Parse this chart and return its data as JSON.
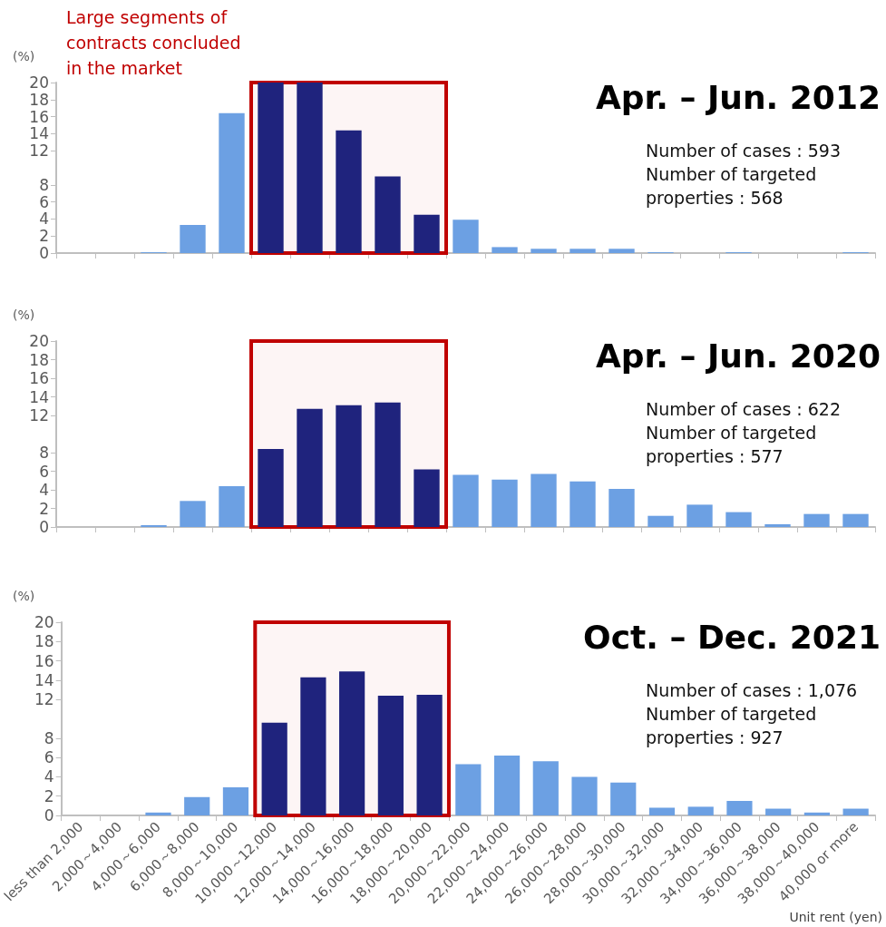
{
  "chart_data": [
    {
      "type": "bar",
      "title": "Apr. – Jun. 2012",
      "ylabel": "(%)",
      "annotations": [
        "Number of cases : 593",
        "Number of targeted properties : 568"
      ],
      "categories": [
        "less than 2,000",
        "2,000～4,000",
        "4,000～6,000",
        "6,000～8,000",
        "8,000～10,000",
        "10,000～12,000",
        "12,000～14,000",
        "14,000～16,000",
        "16,000～18,000",
        "18,000～20,000",
        "20,000～22,000",
        "22,000～24,000",
        "24,000～26,000",
        "26,000～28,000",
        "28,000～30,000",
        "30,000～32,000",
        "32,000～34,000",
        "34,000～36,000",
        "36,000～38,000",
        "38,000～40,000",
        "40,000 or more"
      ],
      "values": [
        0,
        0,
        0.1,
        3.3,
        16.4,
        20,
        20,
        14.4,
        9,
        4.5,
        3.9,
        0.7,
        0.5,
        0.5,
        0.5,
        0.1,
        0,
        0.1,
        0,
        0,
        0.1
      ],
      "colors": [
        "#6ca0e3",
        "#6ca0e3",
        "#6ca0e3",
        "#6ca0e3",
        "#6ca0e3",
        "#1f237d",
        "#1f237d",
        "#1f237d",
        "#1f237d",
        "#1f237d",
        "#6ca0e3",
        "#6ca0e3",
        "#6ca0e3",
        "#6ca0e3",
        "#6ca0e3",
        "#6ca0e3",
        "#6ca0e3",
        "#6ca0e3",
        "#6ca0e3",
        "#6ca0e3",
        "#6ca0e3"
      ],
      "ylim": [
        0,
        20
      ],
      "yticks": [
        0,
        2,
        4,
        6,
        8,
        12,
        14,
        16,
        18,
        20
      ],
      "bands": [
        {
          "axis": "x",
          "from": "10,000～12,000",
          "to": "18,000～20,000",
          "label": "Large segments of contracts concluded in the market",
          "color": "#c00000"
        }
      ],
      "grid": false,
      "tick_labels": "y"
    },
    {
      "type": "bar",
      "title": "Apr. – Jun. 2020",
      "ylabel": "(%)",
      "annotations": [
        "Number of cases : 622",
        "Number of targeted properties : 577"
      ],
      "categories": [
        "less than 2,000",
        "2,000～4,000",
        "4,000～6,000",
        "6,000～8,000",
        "8,000～10,000",
        "10,000～12,000",
        "12,000～14,000",
        "14,000～16,000",
        "16,000～18,000",
        "18,000～20,000",
        "20,000～22,000",
        "22,000～24,000",
        "24,000～26,000",
        "26,000～28,000",
        "28,000～30,000",
        "30,000～32,000",
        "32,000～34,000",
        "34,000～36,000",
        "36,000～38,000",
        "38,000～40,000",
        "40,000 or more"
      ],
      "values": [
        0,
        0,
        0.2,
        2.8,
        4.4,
        8.4,
        12.7,
        13.1,
        13.4,
        6.2,
        5.6,
        5.1,
        5.7,
        4.9,
        4.1,
        1.2,
        2.4,
        1.6,
        0.3,
        1.4,
        1.4
      ],
      "colors": [
        "#6ca0e3",
        "#6ca0e3",
        "#6ca0e3",
        "#6ca0e3",
        "#6ca0e3",
        "#1f237d",
        "#1f237d",
        "#1f237d",
        "#1f237d",
        "#1f237d",
        "#6ca0e3",
        "#6ca0e3",
        "#6ca0e3",
        "#6ca0e3",
        "#6ca0e3",
        "#6ca0e3",
        "#6ca0e3",
        "#6ca0e3",
        "#6ca0e3",
        "#6ca0e3",
        "#6ca0e3"
      ],
      "ylim": [
        0,
        20
      ],
      "yticks": [
        0,
        2,
        4,
        6,
        8,
        12,
        14,
        16,
        18,
        20
      ],
      "bands": [
        {
          "axis": "x",
          "from": "10,000～12,000",
          "to": "18,000～20,000",
          "color": "#c00000"
        }
      ],
      "grid": false,
      "tick_labels": "y"
    },
    {
      "type": "bar",
      "title": "Oct. – Dec. 2021",
      "ylabel": "(%)",
      "xlabel": "Unit rent (yen)",
      "annotations": [
        "Number of cases : 1,076",
        "Number of targeted properties : 927"
      ],
      "categories": [
        "less than 2,000",
        "2,000～4,000",
        "4,000～6,000",
        "6,000～8,000",
        "8,000～10,000",
        "10,000～12,000",
        "12,000～14,000",
        "14,000～16,000",
        "16,000～18,000",
        "18,000～20,000",
        "20,000～22,000",
        "22,000～24,000",
        "24,000～26,000",
        "26,000～28,000",
        "28,000～30,000",
        "30,000～32,000",
        "32,000～34,000",
        "34,000～36,000",
        "36,000～38,000",
        "38,000～40,000",
        "40,000 or more"
      ],
      "values": [
        0,
        0,
        0.3,
        1.9,
        2.9,
        9.6,
        14.3,
        14.9,
        12.4,
        12.5,
        5.3,
        6.2,
        5.6,
        4,
        3.4,
        0.8,
        0.9,
        1.5,
        0.7,
        0.3,
        0.7
      ],
      "colors": [
        "#6ca0e3",
        "#6ca0e3",
        "#6ca0e3",
        "#6ca0e3",
        "#6ca0e3",
        "#1f237d",
        "#1f237d",
        "#1f237d",
        "#1f237d",
        "#1f237d",
        "#6ca0e3",
        "#6ca0e3",
        "#6ca0e3",
        "#6ca0e3",
        "#6ca0e3",
        "#6ca0e3",
        "#6ca0e3",
        "#6ca0e3",
        "#6ca0e3",
        "#6ca0e3",
        "#6ca0e3"
      ],
      "ylim": [
        0,
        20
      ],
      "yticks": [
        0,
        2,
        4,
        6,
        8,
        12,
        14,
        16,
        18,
        20
      ],
      "bands": [
        {
          "axis": "x",
          "from": "10,000～12,000",
          "to": "18,000～20,000",
          "color": "#c00000"
        }
      ],
      "grid": false
    }
  ]
}
